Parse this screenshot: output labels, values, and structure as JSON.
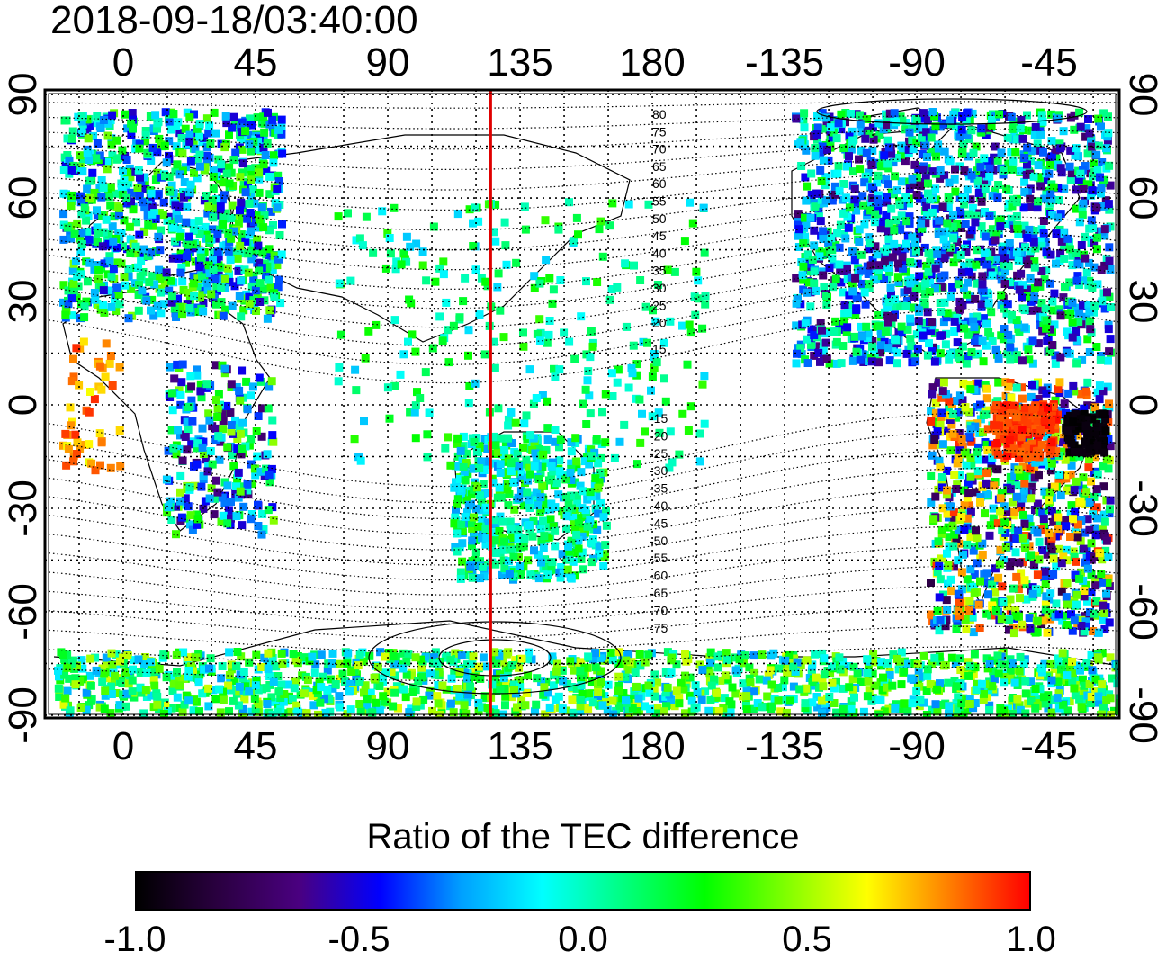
{
  "title": "2018-09-18/03:40:00",
  "x_ticks": [
    "0",
    "45",
    "90",
    "135",
    "180",
    "-135",
    "-90",
    "-45"
  ],
  "y_ticks": [
    "90",
    "60",
    "30",
    "0",
    "-30",
    "-60",
    "-90"
  ],
  "contour_labels_north": [
    "80",
    "75",
    "70",
    "65",
    "60",
    "55",
    "50",
    "45",
    "40",
    "35",
    "30",
    "25",
    "20",
    "15"
  ],
  "contour_labels_south": [
    "-15",
    "-20",
    "-25",
    "-30",
    "-35",
    "-40",
    "-45",
    "-50",
    "-55",
    "-60",
    "-65",
    "-70",
    "-75"
  ],
  "colorbar": {
    "title": "Ratio of the TEC difference",
    "ticks": [
      "-1.0",
      "-0.5",
      "0.0",
      "0.5",
      "1.0"
    ],
    "min": -1.0,
    "max": 1.0,
    "stops": [
      "#000000",
      "#2a0040",
      "#4a0080",
      "#0000ff",
      "#00a0ff",
      "#00ffff",
      "#00ff80",
      "#00ff00",
      "#80ff00",
      "#ffff00",
      "#ff8000",
      "#ff0000"
    ]
  },
  "marker_line_longitude": 125,
  "colors": {
    "marker_line": "#e00000",
    "frame": "#000000"
  }
}
